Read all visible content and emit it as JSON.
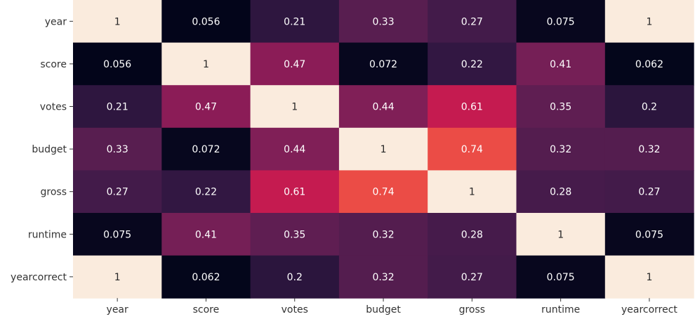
{
  "chart_data": {
    "type": "heatmap",
    "title": "",
    "xlabel": "",
    "ylabel": "",
    "x_categories": [
      "year",
      "score",
      "votes",
      "budget",
      "gross",
      "runtime",
      "yearcorrect"
    ],
    "y_categories": [
      "year",
      "score",
      "votes",
      "budget",
      "gross",
      "runtime",
      "yearcorrect"
    ],
    "values": [
      [
        1,
        0.056,
        0.21,
        0.33,
        0.27,
        0.075,
        1
      ],
      [
        0.056,
        1,
        0.47,
        0.072,
        0.22,
        0.41,
        0.062
      ],
      [
        0.21,
        0.47,
        1,
        0.44,
        0.61,
        0.35,
        0.2
      ],
      [
        0.33,
        0.072,
        0.44,
        1,
        0.74,
        0.32,
        0.32
      ],
      [
        0.27,
        0.22,
        0.61,
        0.74,
        1,
        0.28,
        0.27
      ],
      [
        0.075,
        0.41,
        0.35,
        0.32,
        0.28,
        1,
        0.075
      ],
      [
        1,
        0.062,
        0.2,
        0.32,
        0.27,
        0.075,
        1
      ]
    ],
    "value_labels": [
      [
        "1",
        "0.056",
        "0.21",
        "0.33",
        "0.27",
        "0.075",
        "1"
      ],
      [
        "0.056",
        "1",
        "0.47",
        "0.072",
        "0.22",
        "0.41",
        "0.062"
      ],
      [
        "0.21",
        "0.47",
        "1",
        "0.44",
        "0.61",
        "0.35",
        "0.2"
      ],
      [
        "0.33",
        "0.072",
        "0.44",
        "1",
        "0.74",
        "0.32",
        "0.32"
      ],
      [
        "0.27",
        "0.22",
        "0.61",
        "0.74",
        "1",
        "0.28",
        "0.27"
      ],
      [
        "0.075",
        "0.41",
        "0.35",
        "0.32",
        "0.28",
        "1",
        "0.075"
      ],
      [
        "1",
        "0.062",
        "0.2",
        "0.32",
        "0.27",
        "0.075",
        "1"
      ]
    ],
    "colormap": "rocket",
    "color_range": [
      0.056,
      1
    ],
    "annot": true,
    "colorbar": false,
    "grid": false
  }
}
